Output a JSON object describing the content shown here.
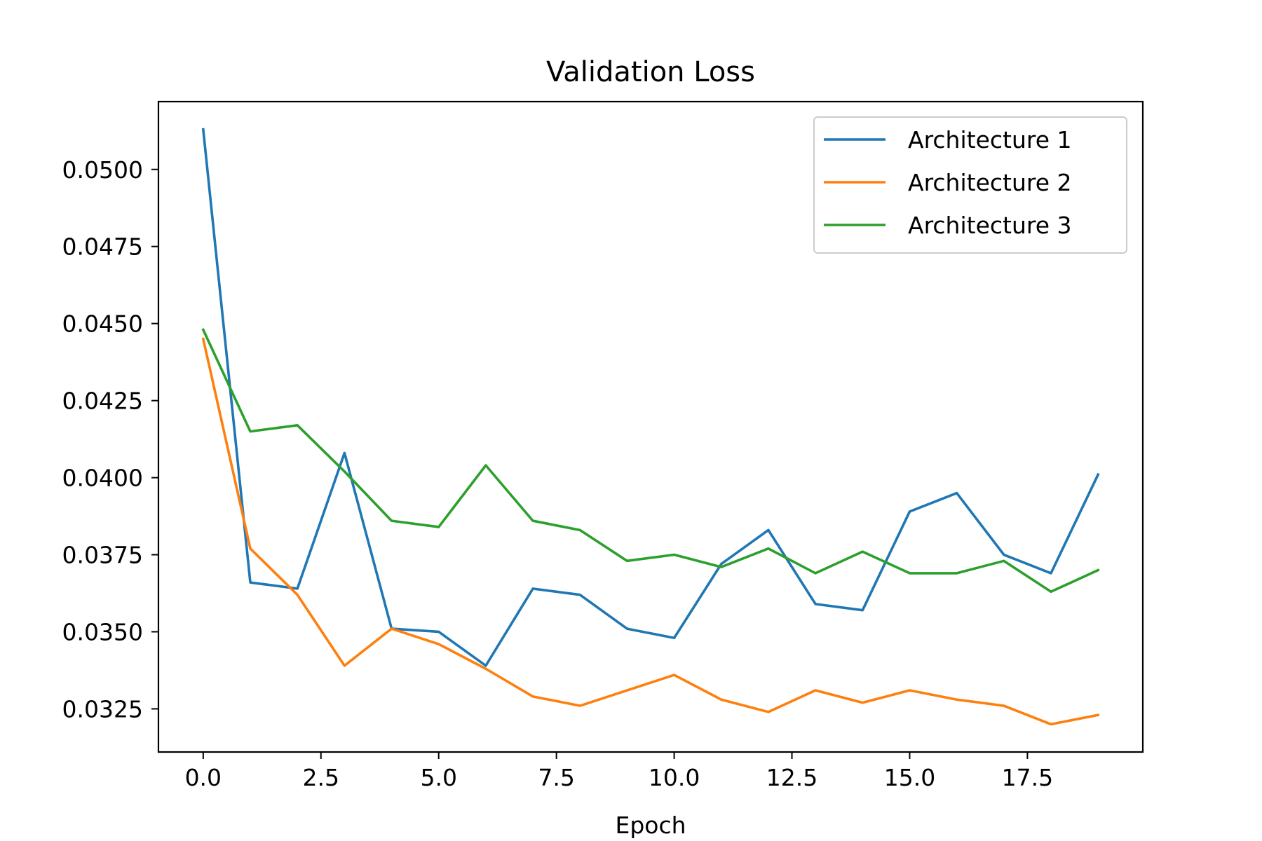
{
  "chart_data": {
    "type": "line",
    "title": "Validation Loss",
    "xlabel": "Epoch",
    "ylabel": "",
    "xlim": [
      -0.95,
      19.95
    ],
    "ylim": [
      0.0311,
      0.0522
    ],
    "xticks": [
      0,
      2.5,
      5,
      7.5,
      10,
      12.5,
      15,
      17.5
    ],
    "xtick_labels": [
      "0.0",
      "2.5",
      "5.0",
      "7.5",
      "10.0",
      "12.5",
      "15.0",
      "17.5"
    ],
    "yticks": [
      0.0325,
      0.035,
      0.0375,
      0.04,
      0.0425,
      0.045,
      0.0475,
      0.05
    ],
    "ytick_labels": [
      "0.0325",
      "0.0350",
      "0.0375",
      "0.0400",
      "0.0425",
      "0.0450",
      "0.0475",
      "0.0500"
    ],
    "grid": false,
    "legend_position": "top-right",
    "x": [
      0,
      1,
      2,
      3,
      4,
      5,
      6,
      7,
      8,
      9,
      10,
      11,
      12,
      13,
      14,
      15,
      16,
      17,
      18,
      19
    ],
    "series": [
      {
        "name": "Architecture 1",
        "color": "#1f77b4",
        "values": [
          0.0513,
          0.0366,
          0.0364,
          0.0408,
          0.0351,
          0.035,
          0.0339,
          0.0364,
          0.0362,
          0.0351,
          0.0348,
          0.0372,
          0.0383,
          0.0359,
          0.0357,
          0.0389,
          0.0395,
          0.0375,
          0.0369,
          0.0401
        ]
      },
      {
        "name": "Architecture 2",
        "color": "#ff7f0e",
        "values": [
          0.0445,
          0.0377,
          0.0362,
          0.0339,
          0.0351,
          0.0346,
          0.0338,
          0.0329,
          0.0326,
          0.0331,
          0.0336,
          0.0328,
          0.0324,
          0.0331,
          0.0327,
          0.0331,
          0.0328,
          0.0326,
          0.032,
          0.0323
        ]
      },
      {
        "name": "Architecture 3",
        "color": "#2ca02c",
        "values": [
          0.0448,
          0.0415,
          0.0417,
          0.0402,
          0.0386,
          0.0384,
          0.0404,
          0.0386,
          0.0383,
          0.0373,
          0.0375,
          0.0371,
          0.0377,
          0.0369,
          0.0376,
          0.0369,
          0.0369,
          0.0373,
          0.0363,
          0.037
        ]
      }
    ]
  }
}
